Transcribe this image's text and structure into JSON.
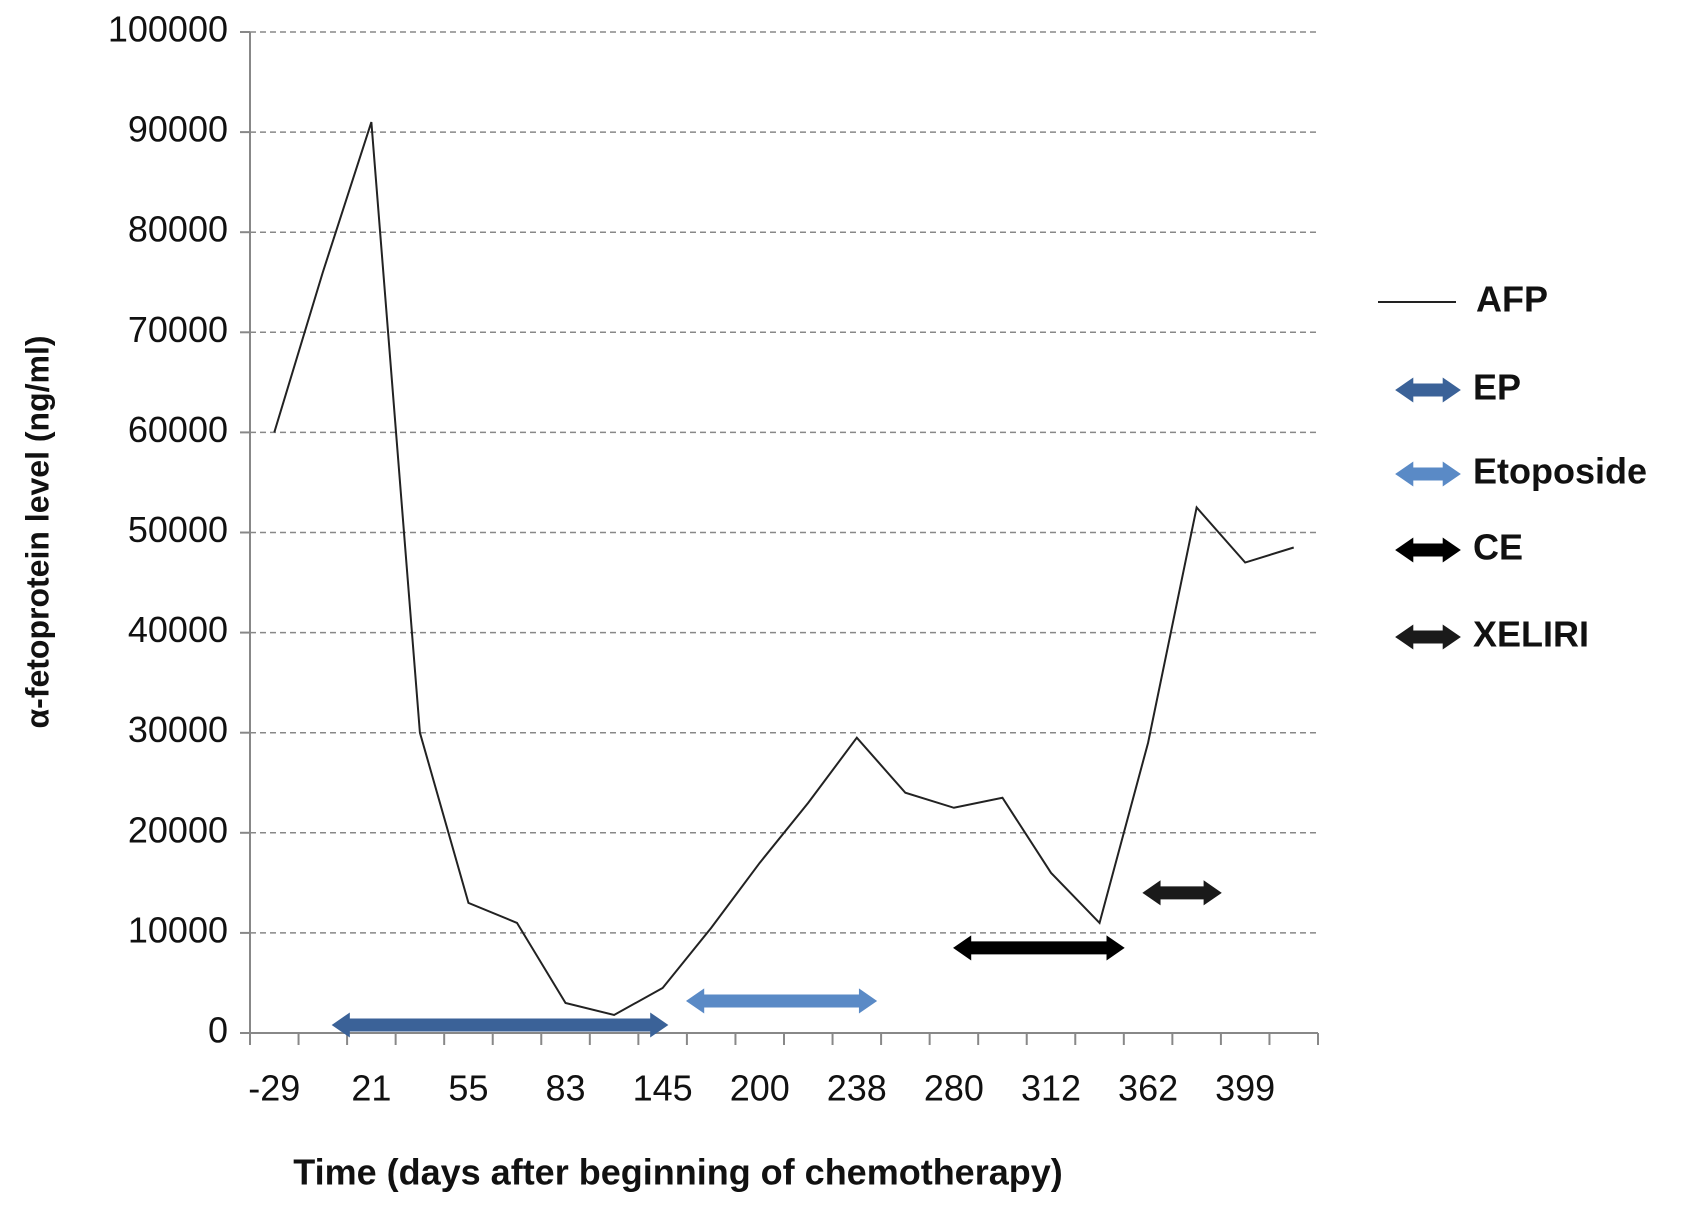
{
  "chart_data": {
    "type": "line",
    "x_label": "Time (days after beginning of chemotherapy)",
    "y_label": "α-fetoprotein level (ng/ml)",
    "categories": [
      "-29",
      null,
      "21",
      null,
      "55",
      null,
      "83",
      null,
      "145",
      null,
      "200",
      null,
      "238",
      null,
      "280",
      null,
      "312",
      null,
      "362",
      null,
      "399",
      null
    ],
    "series": [
      {
        "name": "AFP",
        "color": "#222222",
        "values": [
          60000,
          76000,
          91000,
          30000,
          13000,
          11000,
          3000,
          1800,
          4500,
          10500,
          17000,
          23000,
          29500,
          24000,
          22500,
          23500,
          16000,
          11000,
          29000,
          52500,
          47000,
          48500
        ]
      }
    ],
    "treatments": [
      {
        "name": "EP",
        "color": "#3b6298",
        "start": 1.2,
        "end": 8.1,
        "y": 800
      },
      {
        "name": "Etoposide",
        "color": "#5a8ac6",
        "start": 8.5,
        "end": 12.4,
        "y": 3200
      },
      {
        "name": "CE",
        "color": "#000000",
        "start": 14.0,
        "end": 17.5,
        "y": 8500
      },
      {
        "name": "XELIRI",
        "color": "#1a1a1a",
        "start": 17.9,
        "end": 19.5,
        "y": 14000
      }
    ],
    "ylim": [
      0,
      100000
    ],
    "yticks": [
      0,
      10000,
      20000,
      30000,
      40000,
      50000,
      60000,
      70000,
      80000,
      90000,
      100000
    ],
    "grid": true
  }
}
